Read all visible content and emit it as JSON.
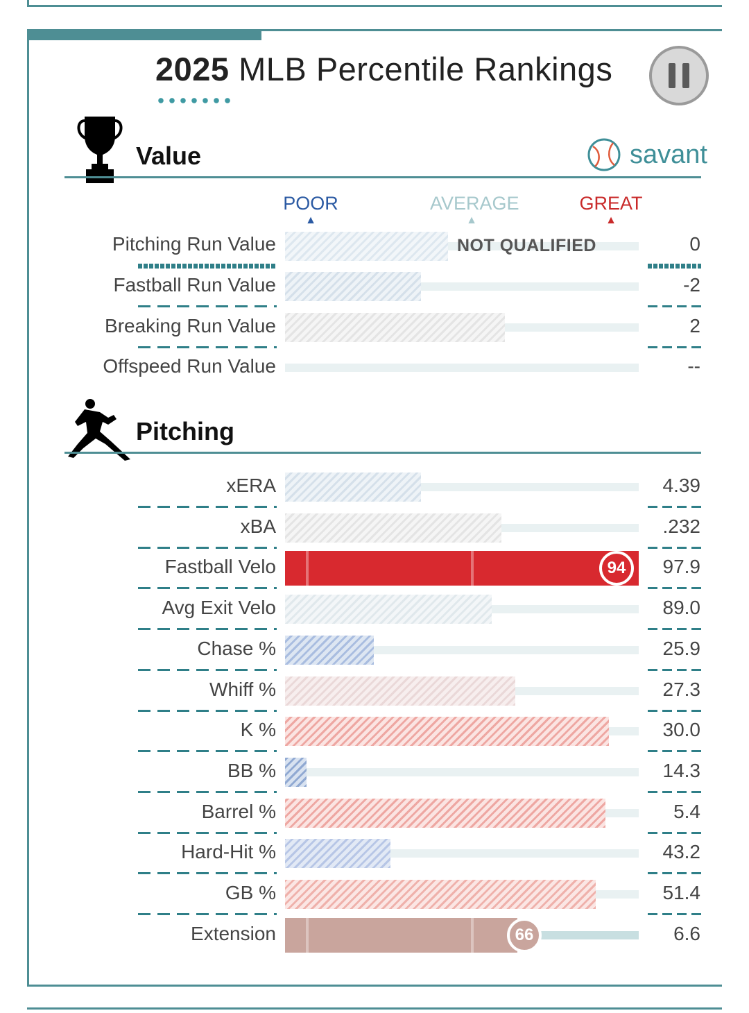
{
  "header": {
    "year": "2025",
    "title_rest": "MLB Percentile Rankings"
  },
  "brand": {
    "name": "savant",
    "color": "#3f8f98"
  },
  "legend": {
    "poor": "POOR",
    "average": "AVERAGE",
    "great": "GREAT",
    "poor_color": "#2b5aa3",
    "average_color": "#a6c8cc",
    "great_color": "#c92a2a"
  },
  "sections": {
    "value": {
      "title": "Value",
      "rows": [
        {
          "label": "Pitching Run Value",
          "value": "0",
          "percentile": 46,
          "note": "NOT QUALIFIED"
        },
        {
          "label": "Fastball Run Value",
          "value": "-2",
          "percentile": 38
        },
        {
          "label": "Breaking Run Value",
          "value": "2",
          "percentile": 62
        },
        {
          "label": "Offspeed Run Value",
          "value": "--",
          "percentile": null
        }
      ]
    },
    "pitching": {
      "title": "Pitching",
      "rows": [
        {
          "label": "xERA",
          "value": "4.39",
          "percentile": 38
        },
        {
          "label": "xBA",
          "value": ".232",
          "percentile": 61
        },
        {
          "label": "Fastball Velo",
          "value": "97.9",
          "percentile": 94
        },
        {
          "label": "Avg Exit Velo",
          "value": "89.0",
          "percentile": 58
        },
        {
          "label": "Chase %",
          "value": "25.9",
          "percentile": 25
        },
        {
          "label": "Whiff %",
          "value": "27.3",
          "percentile": 65
        },
        {
          "label": "K %",
          "value": "30.0",
          "percentile": 92
        },
        {
          "label": "BB %",
          "value": "14.3",
          "percentile": 6
        },
        {
          "label": "Barrel %",
          "value": "5.4",
          "percentile": 91
        },
        {
          "label": "Hard-Hit %",
          "value": "43.2",
          "percentile": 30
        },
        {
          "label": "GB %",
          "value": "51.4",
          "percentile": 88
        },
        {
          "label": "Extension",
          "value": "6.6",
          "percentile": 66
        }
      ]
    }
  },
  "badges": {
    "fastball_velo": "94",
    "extension": "66"
  }
}
